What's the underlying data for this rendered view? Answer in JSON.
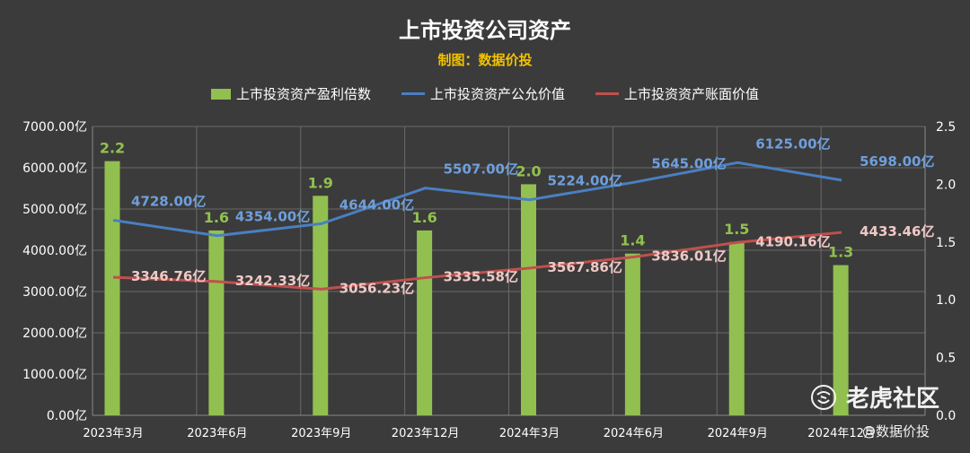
{
  "chart_data": {
    "type": "bar+line",
    "title": "上市投资公司资产",
    "subtitle": "制图：数据价投",
    "categories": [
      "2023年3月",
      "2023年6月",
      "2023年9月",
      "2023年12月",
      "2024年3月",
      "2024年6月",
      "2024年9月",
      "2024年12月"
    ],
    "series": [
      {
        "name": "上市投资资产盈利倍数",
        "type": "bar",
        "axis": "right",
        "color": "#92c050",
        "values": [
          2.2,
          1.6,
          1.9,
          1.6,
          2.0,
          1.4,
          1.5,
          1.3
        ],
        "labels": [
          "2.2",
          "1.6",
          "1.9",
          "1.6",
          "2.0",
          "1.4",
          "1.5",
          "1.3"
        ]
      },
      {
        "name": "上市投资资产公允价值",
        "type": "line",
        "axis": "left",
        "color": "#4a7fc1",
        "values": [
          4728.0,
          4354.0,
          4644.0,
          5507.0,
          5224.0,
          5645.0,
          6125.0,
          5698.0
        ],
        "labels": [
          "4728.00亿",
          "4354.00亿",
          "4644.00亿",
          "5507.00亿",
          "5224.00亿",
          "5645.00亿",
          "6125.00亿",
          "5698.00亿"
        ]
      },
      {
        "name": "上市投资资产账面价值",
        "type": "line",
        "axis": "left",
        "color": "#c0504d",
        "values": [
          3346.76,
          3242.33,
          3056.23,
          3335.58,
          3567.86,
          3836.01,
          4190.16,
          4433.46
        ],
        "labels": [
          "3346.76亿",
          "3242.33亿",
          "3056.23亿",
          "3335.58亿",
          "3567.86亿",
          "3836.01亿",
          "4190.16亿",
          "4433.46亿"
        ]
      }
    ],
    "y_left": {
      "range": [
        0,
        7000
      ],
      "ticks": [
        "0.00亿",
        "1000.00亿",
        "2000.00亿",
        "3000.00亿",
        "4000.00亿",
        "5000.00亿",
        "6000.00亿",
        "7000.00亿"
      ]
    },
    "y_right": {
      "range": [
        0,
        2.5
      ],
      "ticks": [
        "0.0",
        "0.5",
        "1.0",
        "1.5",
        "2.0",
        "2.5"
      ]
    },
    "grid": true,
    "legend_position": "top"
  },
  "watermark": {
    "brand": "老虎社区",
    "sub": "@数据价投"
  },
  "colors": {
    "background": "#3b3b3b",
    "grid": "#6a6a6a",
    "text": "#ffffff"
  }
}
